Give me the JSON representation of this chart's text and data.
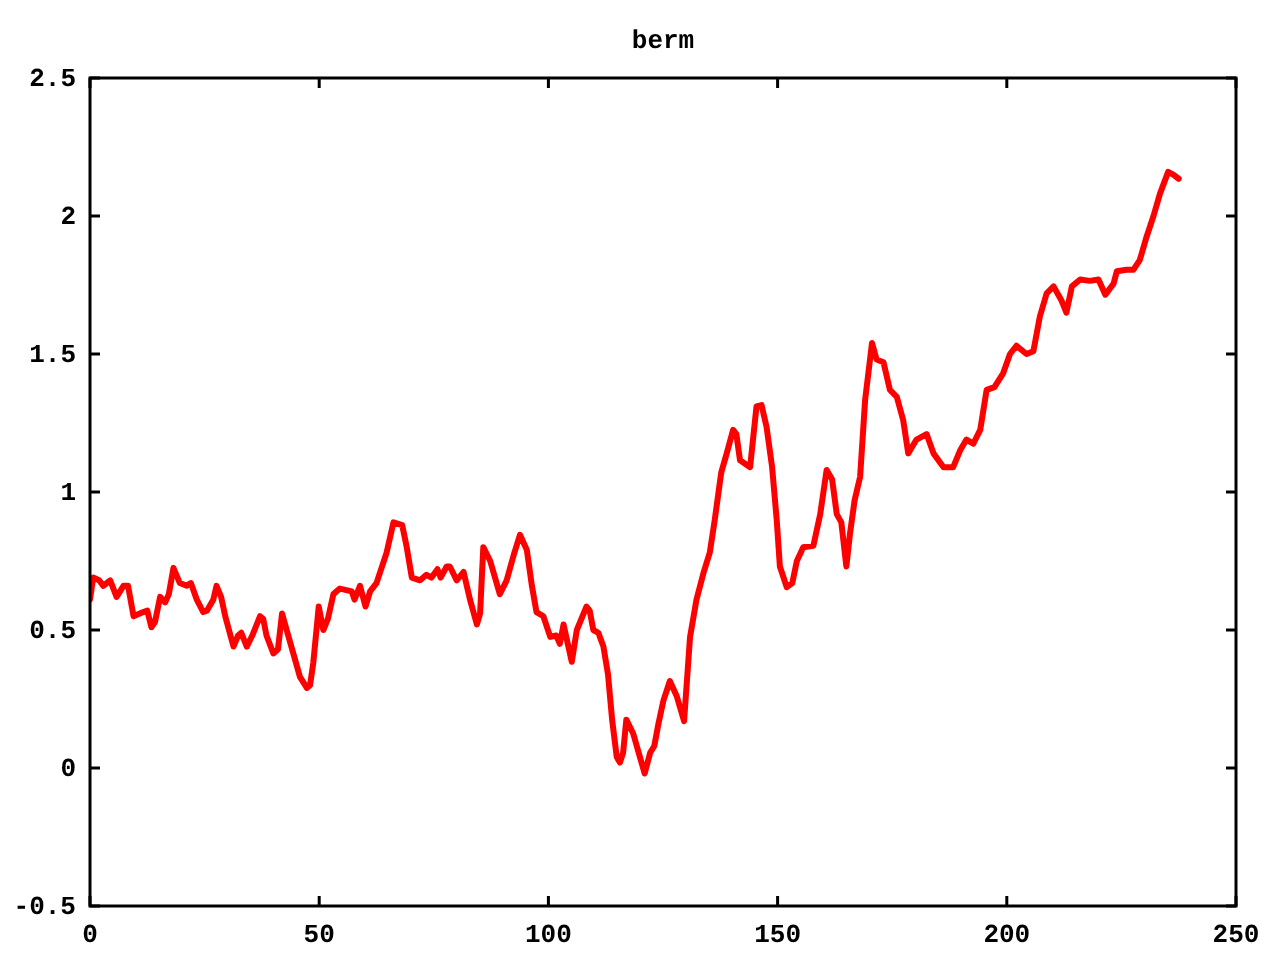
{
  "chart_data": {
    "type": "line",
    "title": "berm",
    "color": "#ff0000",
    "x": [
      0,
      0.7,
      2.0,
      2.9,
      4.4,
      5.8,
      7.3,
      8.3,
      9.5,
      11.6,
      12.5,
      13.4,
      14.2,
      15.3,
      16.4,
      17.2,
      18.2,
      19.6,
      21.1,
      22.0,
      23.3,
      24.7,
      25.5,
      26.9,
      27.6,
      28.6,
      29.5,
      31.3,
      32.3,
      33.0,
      34.2,
      35.4,
      37.1,
      37.8,
      38.5,
      40.0,
      41.0,
      41.9,
      42.9,
      44.1,
      45.8,
      47.3,
      48.0,
      48.7,
      49.9,
      50.9,
      51.9,
      53.1,
      54.5,
      57.1,
      57.7,
      58.9,
      60.1,
      61.1,
      62.5,
      64.7,
      66.2,
      68.1,
      69.1,
      70.2,
      72.0,
      73.4,
      74.5,
      75.8,
      76.5,
      77.8,
      78.5,
      80.0,
      81.5,
      82.9,
      84.4,
      85.1,
      85.8,
      87.3,
      89.4,
      90.9,
      92.4,
      93.8,
      95.3,
      96.4,
      97.4,
      98.9,
      100.4,
      101.7,
      102.5,
      103.3,
      104.1,
      105.1,
      106.2,
      108.3,
      109.0,
      109.8,
      110.9,
      112.0,
      113.0,
      113.9,
      114.9,
      115.6,
      116.3,
      117.0,
      118.5,
      119.7,
      121.0,
      122.2,
      123.1,
      124.0,
      125.1,
      126.5,
      128.0,
      129.6,
      130.9,
      132.3,
      133.8,
      135.2,
      136.3,
      137.7,
      138.9,
      140.3,
      141.0,
      141.8,
      144.0,
      144.7,
      145.4,
      146.5,
      147.6,
      148.8,
      149.8,
      150.5,
      152.0,
      153.2,
      154.2,
      155.6,
      157.8,
      159.3,
      160.7,
      161.9,
      162.9,
      163.9,
      165.0,
      165.8,
      166.8,
      168.0,
      169.1,
      170.6,
      171.6,
      173.1,
      174.5,
      176.0,
      177.4,
      178.5,
      180.3,
      182.5,
      184.0,
      186.2,
      188.3,
      189.8,
      191.2,
      192.7,
      194.2,
      195.6,
      197.3,
      199.2,
      200.7,
      202.1,
      204.3,
      205.8,
      207.2,
      208.7,
      210.2,
      211.9,
      213.0,
      214.2,
      216.0,
      218.1,
      220.0,
      221.5,
      223.3,
      224.0,
      226.1,
      227.6,
      229.0,
      230.5,
      232.0,
      233.4,
      235.2,
      236.3,
      237.5
    ],
    "values": [
      0.61,
      0.69,
      0.68,
      0.66,
      0.68,
      0.62,
      0.66,
      0.66,
      0.55,
      0.565,
      0.57,
      0.51,
      0.53,
      0.62,
      0.6,
      0.63,
      0.725,
      0.67,
      0.66,
      0.67,
      0.61,
      0.565,
      0.57,
      0.61,
      0.66,
      0.62,
      0.55,
      0.44,
      0.48,
      0.49,
      0.44,
      0.48,
      0.55,
      0.54,
      0.48,
      0.415,
      0.43,
      0.56,
      0.5,
      0.43,
      0.33,
      0.29,
      0.3,
      0.38,
      0.585,
      0.5,
      0.54,
      0.63,
      0.65,
      0.64,
      0.61,
      0.66,
      0.585,
      0.64,
      0.67,
      0.78,
      0.89,
      0.88,
      0.8,
      0.69,
      0.68,
      0.7,
      0.69,
      0.72,
      0.69,
      0.73,
      0.73,
      0.68,
      0.71,
      0.61,
      0.52,
      0.56,
      0.8,
      0.75,
      0.63,
      0.68,
      0.77,
      0.845,
      0.79,
      0.66,
      0.565,
      0.55,
      0.475,
      0.48,
      0.45,
      0.52,
      0.46,
      0.385,
      0.5,
      0.585,
      0.57,
      0.5,
      0.49,
      0.44,
      0.34,
      0.175,
      0.04,
      0.02,
      0.055,
      0.175,
      0.125,
      0.055,
      -0.02,
      0.055,
      0.08,
      0.16,
      0.245,
      0.315,
      0.26,
      0.17,
      0.475,
      0.61,
      0.705,
      0.78,
      0.9,
      1.07,
      1.14,
      1.225,
      1.21,
      1.115,
      1.09,
      1.2,
      1.31,
      1.315,
      1.235,
      1.09,
      0.9,
      0.73,
      0.655,
      0.67,
      0.75,
      0.8,
      0.805,
      0.92,
      1.08,
      1.045,
      0.92,
      0.89,
      0.73,
      0.85,
      0.97,
      1.055,
      1.335,
      1.54,
      1.48,
      1.47,
      1.37,
      1.345,
      1.26,
      1.14,
      1.19,
      1.21,
      1.14,
      1.09,
      1.09,
      1.15,
      1.19,
      1.175,
      1.225,
      1.37,
      1.38,
      1.43,
      1.5,
      1.53,
      1.5,
      1.51,
      1.635,
      1.72,
      1.745,
      1.695,
      1.65,
      1.745,
      1.77,
      1.765,
      1.77,
      1.715,
      1.755,
      1.8,
      1.805,
      1.805,
      1.84,
      1.925,
      2.0,
      2.08,
      2.16,
      2.15,
      2.135
    ],
    "xlim": [
      0,
      250
    ],
    "ylim": [
      -0.5,
      2.5
    ],
    "xticks": [
      0,
      50,
      100,
      150,
      200,
      250
    ],
    "yticks": [
      -0.5,
      0,
      0.5,
      1,
      1.5,
      2,
      2.5
    ]
  }
}
